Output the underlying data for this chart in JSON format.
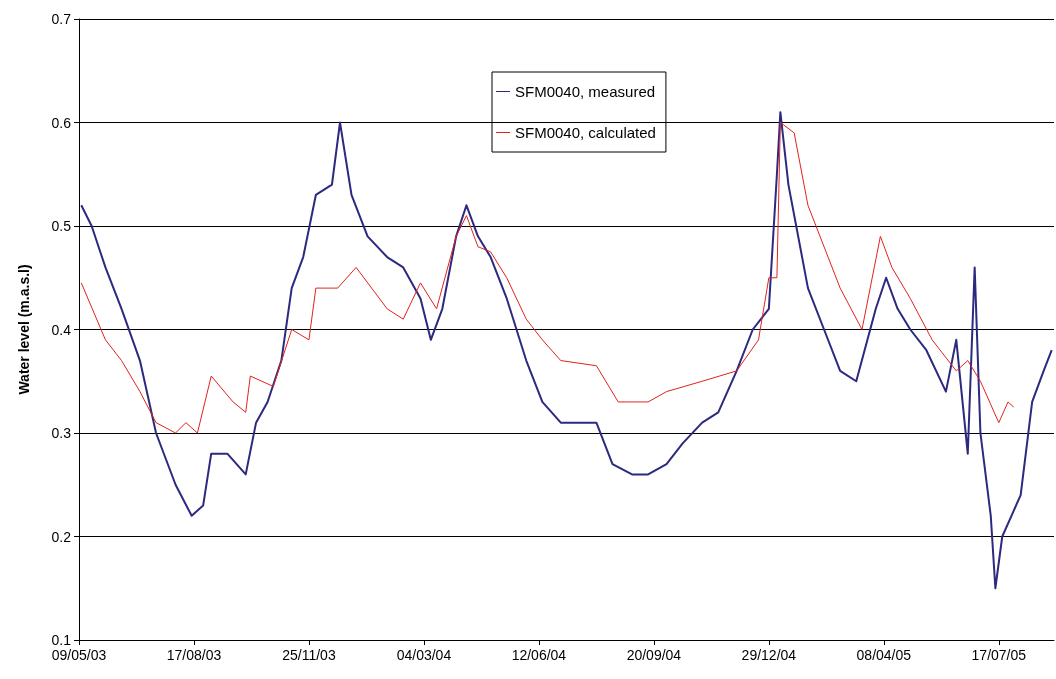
{
  "chart_data": {
    "type": "line",
    "ylabel": "Water level (m.a.s.l)",
    "xlim": [
      "2003-05-09",
      "2005-09-03"
    ],
    "xticks": [
      {
        "value": "2003-05-09",
        "label": "09/05/03"
      },
      {
        "value": "2003-08-17",
        "label": "17/08/03"
      },
      {
        "value": "2003-11-25",
        "label": "25/11/03"
      },
      {
        "value": "2004-03-04",
        "label": "04/03/04"
      },
      {
        "value": "2004-06-12",
        "label": "12/06/04"
      },
      {
        "value": "2004-09-20",
        "label": "20/09/04"
      },
      {
        "value": "2004-12-29",
        "label": "29/12/04"
      },
      {
        "value": "2005-04-08",
        "label": "08/04/05"
      },
      {
        "value": "2005-07-17",
        "label": "17/07/05"
      }
    ],
    "ylim": [
      0.1,
      0.7
    ],
    "yticks": [
      0.1,
      0.2,
      0.3,
      0.4,
      0.5,
      0.6,
      0.7
    ],
    "grid": "y",
    "legend": "top",
    "marker": "none",
    "line_style": "solid",
    "series": [
      {
        "name": "SFM0040, measured",
        "color": "#2b2a7f",
        "x": [
          "2003-05-11",
          "2003-05-20",
          "2003-06-01",
          "2003-06-15",
          "2003-07-01",
          "2003-07-15",
          "2003-08-01",
          "2003-08-15",
          "2003-08-25",
          "2003-09-01",
          "2003-09-15",
          "2003-10-01",
          "2003-10-10",
          "2003-10-20",
          "2003-11-01",
          "2003-11-10",
          "2003-11-20",
          "2003-12-01",
          "2003-12-15",
          "2003-12-22",
          "2004-01-01",
          "2004-01-15",
          "2004-02-01",
          "2004-02-15",
          "2004-03-01",
          "2004-03-10",
          "2004-03-20",
          "2004-04-01",
          "2004-04-10",
          "2004-04-20",
          "2004-05-01",
          "2004-05-15",
          "2004-06-01",
          "2004-06-15",
          "2004-07-01",
          "2004-07-15",
          "2004-08-01",
          "2004-08-15",
          "2004-09-01",
          "2004-09-15",
          "2004-10-01",
          "2004-10-15",
          "2004-11-01",
          "2004-11-15",
          "2004-12-01",
          "2004-12-15",
          "2004-12-29",
          "2005-01-05",
          "2005-01-08",
          "2005-01-15",
          "2005-02-01",
          "2005-02-15",
          "2005-03-01",
          "2005-03-15",
          "2005-04-01",
          "2005-04-10",
          "2005-04-20",
          "2005-05-01",
          "2005-05-15",
          "2005-06-01",
          "2005-06-10",
          "2005-06-20",
          "2005-06-26",
          "2005-07-01",
          "2005-07-10",
          "2005-07-14",
          "2005-07-20",
          "2005-07-28",
          "2005-08-05",
          "2005-08-15",
          "2005-08-25",
          "2005-09-01"
        ],
        "values": [
          0.52,
          0.5,
          0.46,
          0.42,
          0.37,
          0.3,
          0.25,
          0.22,
          0.23,
          0.28,
          0.28,
          0.26,
          0.31,
          0.33,
          0.37,
          0.44,
          0.47,
          0.53,
          0.54,
          0.6,
          0.53,
          0.49,
          0.47,
          0.46,
          0.43,
          0.39,
          0.42,
          0.49,
          0.52,
          0.49,
          0.47,
          0.43,
          0.37,
          0.33,
          0.31,
          0.31,
          0.31,
          0.27,
          0.26,
          0.26,
          0.27,
          0.29,
          0.31,
          0.32,
          0.36,
          0.4,
          0.42,
          0.55,
          0.61,
          0.54,
          0.44,
          0.4,
          0.36,
          0.35,
          0.42,
          0.45,
          0.42,
          0.4,
          0.38,
          0.34,
          0.39,
          0.28,
          0.46,
          0.3,
          0.22,
          0.15,
          0.2,
          0.22,
          0.24,
          0.33,
          0.36,
          0.38
        ]
      },
      {
        "name": "SFM0040, calculated",
        "color": "#e0231f",
        "x": [
          "2003-05-11",
          "2003-06-01",
          "2003-06-15",
          "2003-07-01",
          "2003-07-15",
          "2003-08-01",
          "2003-08-10",
          "2003-08-20",
          "2003-09-01",
          "2003-09-20",
          "2003-10-01",
          "2003-10-05",
          "2003-10-25",
          "2003-11-10",
          "2003-11-25",
          "2003-12-01",
          "2003-12-20",
          "2004-01-05",
          "2004-02-01",
          "2004-02-15",
          "2004-03-01",
          "2004-03-15",
          "2004-04-01",
          "2004-04-10",
          "2004-04-20",
          "2004-05-01",
          "2004-05-15",
          "2004-06-01",
          "2004-06-15",
          "2004-07-01",
          "2004-08-01",
          "2004-08-20",
          "2004-09-15",
          "2004-10-01",
          "2004-11-01",
          "2004-12-01",
          "2004-12-20",
          "2004-12-29",
          "2005-01-05",
          "2005-01-08",
          "2005-01-20",
          "2005-02-01",
          "2005-03-01",
          "2005-03-20",
          "2005-04-05",
          "2005-04-15",
          "2005-05-01",
          "2005-05-20",
          "2005-06-10",
          "2005-06-20",
          "2005-07-01",
          "2005-07-17",
          "2005-07-25",
          "2005-07-30"
        ],
        "values": [
          0.445,
          0.39,
          0.37,
          0.34,
          0.31,
          0.3,
          0.31,
          0.3,
          0.355,
          0.33,
          0.32,
          0.355,
          0.345,
          0.4,
          0.39,
          0.44,
          0.44,
          0.46,
          0.42,
          0.41,
          0.445,
          0.42,
          0.49,
          0.51,
          0.48,
          0.475,
          0.45,
          0.41,
          0.39,
          0.37,
          0.365,
          0.33,
          0.33,
          0.34,
          0.35,
          0.36,
          0.39,
          0.45,
          0.45,
          0.6,
          0.59,
          0.52,
          0.44,
          0.4,
          0.49,
          0.46,
          0.43,
          0.39,
          0.36,
          0.37,
          0.35,
          0.31,
          0.33,
          0.325
        ]
      }
    ]
  }
}
